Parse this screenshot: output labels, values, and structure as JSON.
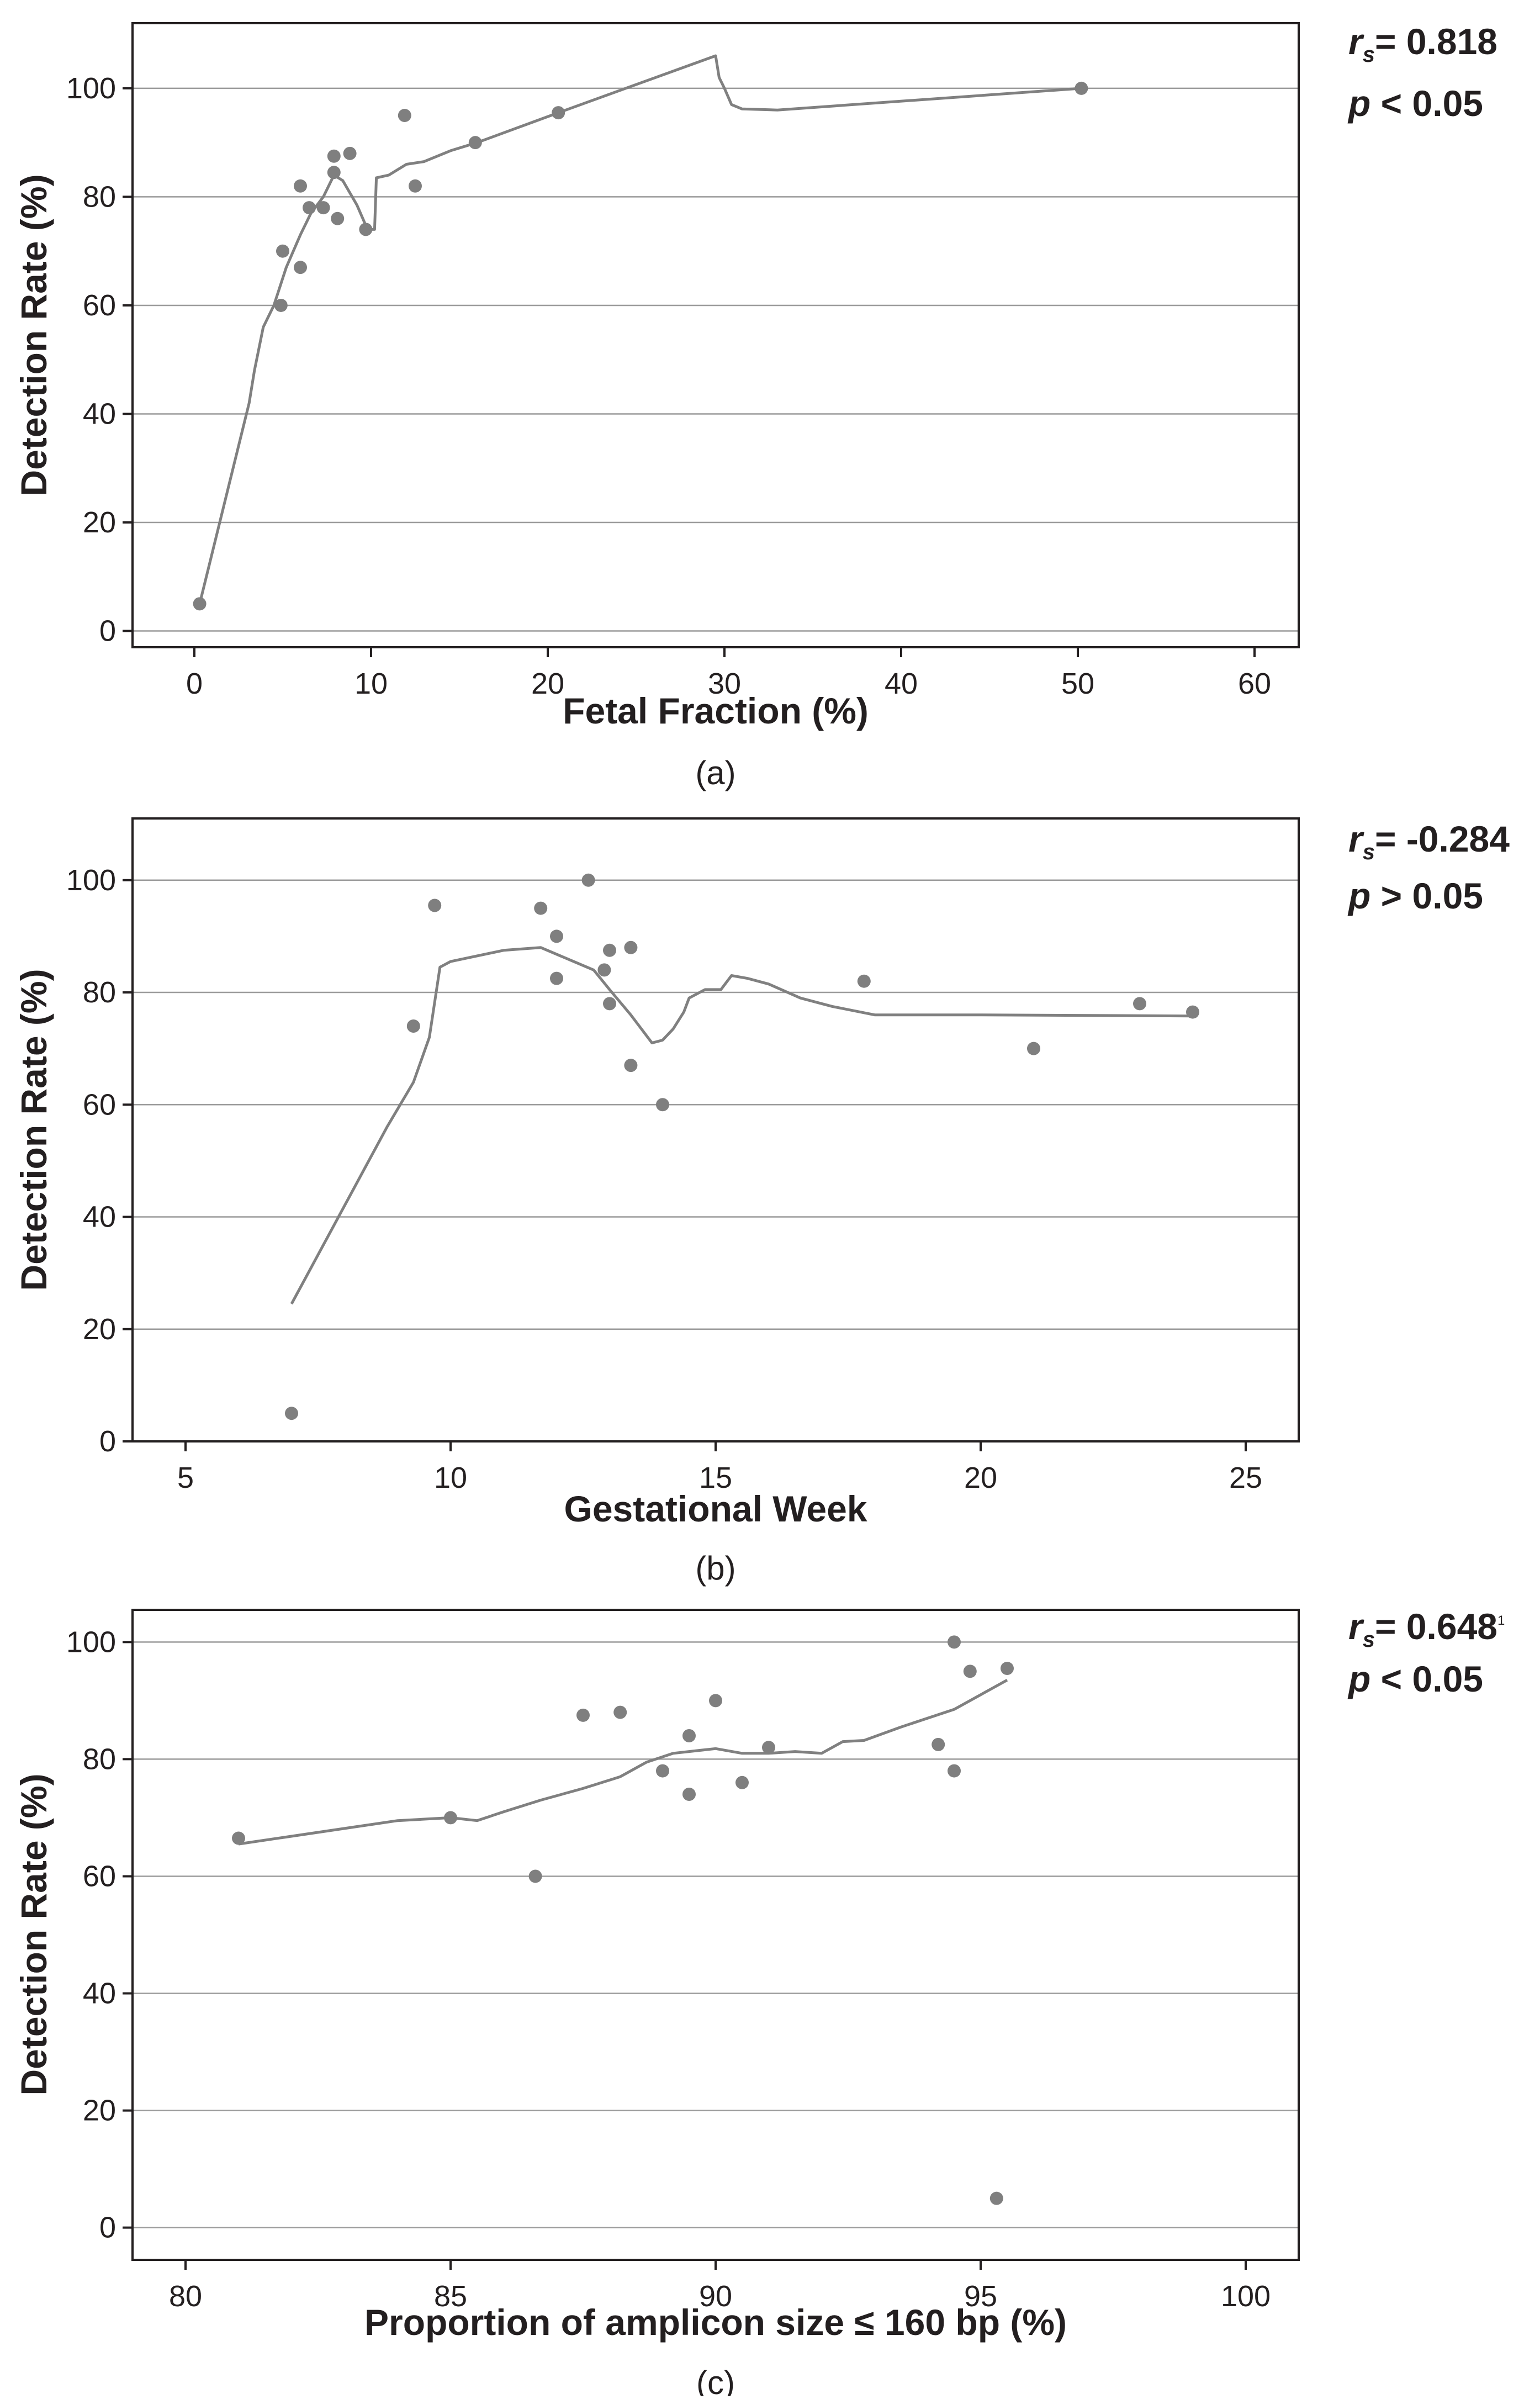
{
  "colors": {
    "marker": "#7f7f7f",
    "line": "#808080",
    "grid": "#9b9b9b",
    "axis": "#231f20",
    "text": "#231f20"
  },
  "chart_data": [
    {
      "type": "scatter",
      "panel_label": "(a)",
      "xlabel": "Fetal Fraction (%)",
      "ylabel": "Detection Rate (%)",
      "xlim": [
        -3.5,
        62.5
      ],
      "ylim": [
        -3,
        112
      ],
      "xticks": [
        0,
        10,
        20,
        30,
        40,
        50,
        60
      ],
      "yticks": [
        0,
        20,
        40,
        60,
        80,
        100
      ],
      "grid": "horizontal",
      "annotation": {
        "rs_symbol": "r",
        "rs_subscript": "s",
        "rs_value": "= 0.818",
        "p_symbol": "p",
        "p_text": " < 0.05"
      },
      "points": [
        {
          "x": 0.3,
          "y": 5
        },
        {
          "x": 4.9,
          "y": 60
        },
        {
          "x": 5.0,
          "y": 70
        },
        {
          "x": 6.0,
          "y": 82
        },
        {
          "x": 6.0,
          "y": 67
        },
        {
          "x": 6.5,
          "y": 78
        },
        {
          "x": 7.3,
          "y": 78
        },
        {
          "x": 7.9,
          "y": 87.5
        },
        {
          "x": 7.9,
          "y": 84.5
        },
        {
          "x": 8.1,
          "y": 76
        },
        {
          "x": 8.8,
          "y": 88
        },
        {
          "x": 9.7,
          "y": 74
        },
        {
          "x": 11.9,
          "y": 95
        },
        {
          "x": 12.5,
          "y": 82
        },
        {
          "x": 15.9,
          "y": 90
        },
        {
          "x": 20.6,
          "y": 95.5
        },
        {
          "x": 50.2,
          "y": 100
        }
      ],
      "fit_line": [
        [
          0.3,
          5
        ],
        [
          3.1,
          42
        ],
        [
          3.4,
          48
        ],
        [
          3.9,
          56
        ],
        [
          4.5,
          60
        ],
        [
          5.2,
          67
        ],
        [
          6.0,
          73
        ],
        [
          6.6,
          77
        ],
        [
          7.3,
          80
        ],
        [
          7.9,
          84
        ],
        [
          8.4,
          83
        ],
        [
          9.2,
          78.5
        ],
        [
          9.8,
          74
        ],
        [
          10.2,
          74
        ],
        [
          10.3,
          83.5
        ],
        [
          11.0,
          84
        ],
        [
          12.0,
          86
        ],
        [
          13.0,
          86.5
        ],
        [
          14.5,
          88.5
        ],
        [
          16.0,
          90
        ],
        [
          20.6,
          95.5
        ],
        [
          29.5,
          106
        ],
        [
          29.7,
          102
        ],
        [
          30.0,
          100
        ],
        [
          30.4,
          97
        ],
        [
          31.0,
          96.2
        ],
        [
          33.0,
          96
        ],
        [
          50.2,
          100
        ]
      ]
    },
    {
      "type": "scatter",
      "panel_label": "(b)",
      "xlabel": "Gestational Week",
      "ylabel": "Detection Rate (%)",
      "xlim": [
        4,
        26
      ],
      "ylim": [
        0,
        111
      ],
      "xticks": [
        5,
        10,
        15,
        20,
        25
      ],
      "yticks": [
        0,
        20,
        40,
        60,
        80,
        100
      ],
      "grid": "horizontal",
      "annotation": {
        "rs_symbol": "r",
        "rs_subscript": "s",
        "rs_value": "= -0.284",
        "p_symbol": "p",
        "p_text": " > 0.05"
      },
      "points": [
        {
          "x": 7.0,
          "y": 5
        },
        {
          "x": 9.3,
          "y": 74
        },
        {
          "x": 9.7,
          "y": 95.5
        },
        {
          "x": 11.7,
          "y": 95
        },
        {
          "x": 12.0,
          "y": 90
        },
        {
          "x": 12.0,
          "y": 82.5
        },
        {
          "x": 12.6,
          "y": 100
        },
        {
          "x": 12.9,
          "y": 84
        },
        {
          "x": 13.0,
          "y": 87.5
        },
        {
          "x": 13.0,
          "y": 78
        },
        {
          "x": 13.4,
          "y": 88
        },
        {
          "x": 13.4,
          "y": 67
        },
        {
          "x": 14.0,
          "y": 60
        },
        {
          "x": 17.8,
          "y": 82
        },
        {
          "x": 21.0,
          "y": 70
        },
        {
          "x": 23.0,
          "y": 78
        },
        {
          "x": 24.0,
          "y": 76.5
        }
      ],
      "fit_line": [
        [
          7.0,
          24.5
        ],
        [
          8.0,
          42
        ],
        [
          8.8,
          56
        ],
        [
          9.3,
          64
        ],
        [
          9.6,
          72
        ],
        [
          9.8,
          84.5
        ],
        [
          10.0,
          85.5
        ],
        [
          11.0,
          87.5
        ],
        [
          11.7,
          88
        ],
        [
          12.2,
          86
        ],
        [
          12.7,
          84
        ],
        [
          13.0,
          80.5
        ],
        [
          13.4,
          76
        ],
        [
          13.8,
          71
        ],
        [
          14.0,
          71.5
        ],
        [
          14.2,
          73.5
        ],
        [
          14.4,
          76.5
        ],
        [
          14.5,
          79
        ],
        [
          14.8,
          80.5
        ],
        [
          15.1,
          80.5
        ],
        [
          15.3,
          83
        ],
        [
          15.6,
          82.5
        ],
        [
          16.0,
          81.5
        ],
        [
          16.6,
          79
        ],
        [
          17.2,
          77.5
        ],
        [
          18.0,
          76
        ],
        [
          20.0,
          76
        ],
        [
          24.0,
          75.8
        ]
      ]
    },
    {
      "type": "scatter",
      "panel_label": "(c)",
      "xlabel": "Proportion of amplicon size ≤ 160 bp (%)",
      "ylabel": "Detection Rate (%)",
      "xlim": [
        79,
        101
      ],
      "ylim": [
        -5.5,
        105.5
      ],
      "xticks": [
        80,
        85,
        90,
        95,
        100
      ],
      "yticks": [
        0,
        20,
        40,
        60,
        80,
        100
      ],
      "grid": "horizontal",
      "annotation": {
        "rs_symbol": "r",
        "rs_subscript": "s",
        "rs_value": "= 0.648",
        "rs_footnote": "1",
        "p_symbol": "p",
        "p_text": " < 0.05"
      },
      "points": [
        {
          "x": 81.0,
          "y": 66.5
        },
        {
          "x": 85.0,
          "y": 70
        },
        {
          "x": 86.6,
          "y": 60
        },
        {
          "x": 87.5,
          "y": 87.5
        },
        {
          "x": 88.2,
          "y": 88
        },
        {
          "x": 89.0,
          "y": 78
        },
        {
          "x": 89.5,
          "y": 74
        },
        {
          "x": 89.5,
          "y": 84
        },
        {
          "x": 90.0,
          "y": 90
        },
        {
          "x": 90.5,
          "y": 76
        },
        {
          "x": 91.0,
          "y": 82
        },
        {
          "x": 94.2,
          "y": 82.5
        },
        {
          "x": 94.5,
          "y": 100
        },
        {
          "x": 94.5,
          "y": 78
        },
        {
          "x": 94.8,
          "y": 95
        },
        {
          "x": 95.3,
          "y": 5
        },
        {
          "x": 95.5,
          "y": 95.5
        }
      ],
      "fit_line": [
        [
          81.0,
          65.5
        ],
        [
          84.0,
          69.5
        ],
        [
          85.0,
          70
        ],
        [
          85.5,
          69.5
        ],
        [
          86.0,
          71
        ],
        [
          86.7,
          73
        ],
        [
          87.5,
          75
        ],
        [
          88.2,
          77
        ],
        [
          88.7,
          79.5
        ],
        [
          89.2,
          81
        ],
        [
          90.0,
          81.8
        ],
        [
          90.5,
          81
        ],
        [
          91.0,
          81
        ],
        [
          91.5,
          81.3
        ],
        [
          92.0,
          81
        ],
        [
          92.4,
          83
        ],
        [
          92.8,
          83.2
        ],
        [
          93.5,
          85.5
        ],
        [
          94.5,
          88.5
        ],
        [
          95.5,
          93.5
        ]
      ]
    }
  ]
}
